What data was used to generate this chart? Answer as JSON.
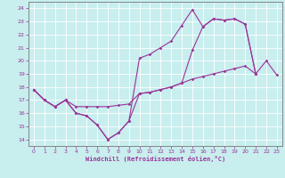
{
  "xlabel": "Windchill (Refroidissement éolien,°C)",
  "xlim": [
    -0.5,
    23.5
  ],
  "ylim": [
    13.5,
    24.5
  ],
  "xticks": [
    0,
    1,
    2,
    3,
    4,
    5,
    6,
    7,
    8,
    9,
    10,
    11,
    12,
    13,
    14,
    15,
    16,
    17,
    18,
    19,
    20,
    21,
    22,
    23
  ],
  "yticks": [
    14,
    15,
    16,
    17,
    18,
    19,
    20,
    21,
    22,
    23,
    24
  ],
  "bg_color": "#c8eeee",
  "grid_color": "#aadddd",
  "line_color": "#993399",
  "line1_x": [
    0,
    1,
    2,
    3,
    4,
    5,
    6,
    7,
    8,
    9,
    10,
    11,
    12,
    13,
    14,
    15,
    16,
    17,
    18,
    19,
    20,
    21
  ],
  "line1_y": [
    17.8,
    17.0,
    16.5,
    17.0,
    16.0,
    15.8,
    15.1,
    14.0,
    14.5,
    15.4,
    20.2,
    20.5,
    21.0,
    21.5,
    22.7,
    23.9,
    22.6,
    23.2,
    23.1,
    23.2,
    22.8,
    19.0
  ],
  "line2_x": [
    0,
    1,
    2,
    3,
    4,
    5,
    6,
    7,
    8,
    9,
    10,
    11,
    12,
    13,
    14,
    15,
    16,
    17,
    18,
    19,
    20,
    21,
    22,
    23
  ],
  "line2_y": [
    17.8,
    17.0,
    16.5,
    17.0,
    16.5,
    16.5,
    16.5,
    16.5,
    16.6,
    16.7,
    17.5,
    17.6,
    17.8,
    18.0,
    18.3,
    18.6,
    18.8,
    19.0,
    19.2,
    19.4,
    19.6,
    19.0,
    20.0,
    18.9
  ],
  "line3_x": [
    0,
    1,
    2,
    3,
    4,
    5,
    6,
    7,
    8,
    9,
    10,
    11,
    12,
    13,
    14,
    15,
    16,
    17,
    18,
    19,
    20,
    21
  ],
  "line3_y": [
    17.8,
    17.0,
    16.5,
    17.0,
    16.0,
    15.8,
    15.1,
    14.0,
    14.5,
    15.4,
    17.5,
    17.6,
    17.8,
    18.0,
    18.3,
    20.8,
    22.6,
    23.2,
    23.1,
    23.2,
    22.8,
    19.0
  ]
}
